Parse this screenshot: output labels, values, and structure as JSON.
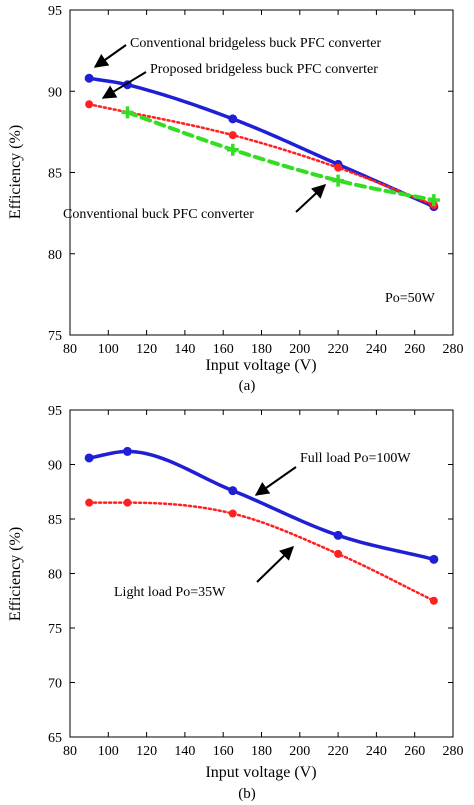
{
  "chart_data": [
    {
      "type": "line",
      "caption": "(a)",
      "xlabel": "Input voltage (V)",
      "ylabel": "Efficiency (%)",
      "xlim": [
        80,
        280
      ],
      "ylim": [
        75,
        95
      ],
      "xticks": [
        "80",
        "100",
        "120",
        "140",
        "160",
        "180",
        "200",
        "220",
        "240",
        "260",
        "280"
      ],
      "yticks": [
        "75",
        "80",
        "85",
        "90",
        "95"
      ],
      "grid": false,
      "series": [
        {
          "name": "Conventional bridgeless buck PFC converter",
          "color": "#1f1fd6",
          "style": "solid",
          "marker": "circle",
          "x": [
            90,
            110,
            165,
            220,
            270
          ],
          "y": [
            90.8,
            90.4,
            88.3,
            85.5,
            82.9
          ]
        },
        {
          "name": "Proposed bridgeless buck PFC converter",
          "color": "#ff2020",
          "style": "dotted",
          "marker": "dot",
          "x": [
            90,
            165,
            220,
            270
          ],
          "y": [
            89.2,
            87.3,
            85.3,
            83.0
          ]
        },
        {
          "name": "Conventional buck PFC converter",
          "color": "#33dd22",
          "style": "dashed",
          "marker": "plus",
          "x": [
            110,
            165,
            220,
            270
          ],
          "y": [
            88.7,
            86.4,
            84.5,
            83.3
          ]
        }
      ],
      "annotations": [
        "Po=50W"
      ]
    },
    {
      "type": "line",
      "caption": "(b)",
      "xlabel": "Input voltage (V)",
      "ylabel": "Efficiency (%)",
      "xlim": [
        80,
        280
      ],
      "ylim": [
        65,
        95
      ],
      "xticks": [
        "80",
        "100",
        "120",
        "140",
        "160",
        "180",
        "200",
        "220",
        "240",
        "260",
        "280"
      ],
      "yticks": [
        "65",
        "70",
        "75",
        "80",
        "85",
        "90",
        "95"
      ],
      "grid": false,
      "series": [
        {
          "name": "Full load Po=100W",
          "color": "#1f1fd6",
          "style": "solid",
          "marker": "circle",
          "x": [
            90,
            110,
            165,
            220,
            270
          ],
          "y": [
            90.6,
            91.2,
            87.6,
            83.5,
            81.3
          ]
        },
        {
          "name": "Light load Po=35W",
          "color": "#ff2020",
          "style": "dotted",
          "marker": "dot",
          "x": [
            90,
            110,
            165,
            220,
            270
          ],
          "y": [
            86.5,
            86.5,
            85.5,
            81.8,
            77.5
          ]
        }
      ],
      "annotations": []
    }
  ]
}
